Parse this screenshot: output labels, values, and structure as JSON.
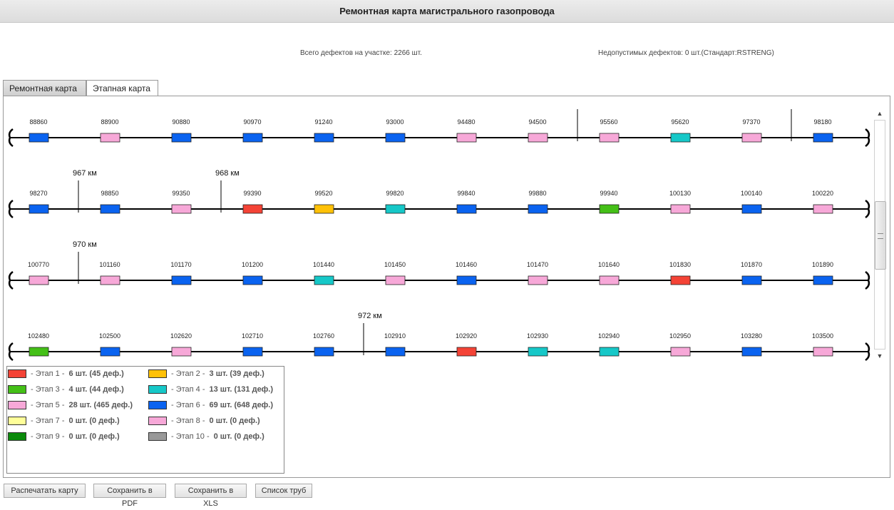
{
  "header": {
    "title": "Ремонтная карта магистрального газопровода"
  },
  "summary": {
    "total_defects": "Всего дефектов на участке: 2266 шт.",
    "critical_defects": "Недопустимых дефектов: 0 шт.(Стандарт:RSTRENG)"
  },
  "tabs": [
    {
      "label": "Ремонтная карта",
      "active": false
    },
    {
      "label": "Этапная карта",
      "active": true
    }
  ],
  "colors": {
    "stage1": "#f44336",
    "stage2": "#ffc107",
    "stage3": "#44c017",
    "stage4": "#16c8c8",
    "stage5": "#f7a8d8",
    "stage6": "#0a63f0",
    "stage7": "#ffff99",
    "stage8": "#f7a8d8",
    "stage9": "#0a8a0a",
    "stage10": "#999999"
  },
  "map": {
    "rows": [
      {
        "pipes": [
          {
            "label": "88860",
            "stage": 6
          },
          {
            "label": "88900",
            "stage": 5
          },
          {
            "label": "90880",
            "stage": 6
          },
          {
            "label": "90970",
            "stage": 6
          },
          {
            "label": "91240",
            "stage": 6
          },
          {
            "label": "93000",
            "stage": 6
          },
          {
            "label": "94480",
            "stage": 5
          },
          {
            "label": "94500",
            "stage": 5
          },
          {
            "label": "95560",
            "stage": 5
          },
          {
            "label": "95620",
            "stage": 4
          },
          {
            "label": "97370",
            "stage": 5
          },
          {
            "label": "98180",
            "stage": 6
          }
        ],
        "markers": [
          {
            "after": 7,
            "label": ""
          },
          {
            "after": 10,
            "label": ""
          }
        ]
      },
      {
        "pipes": [
          {
            "label": "98270",
            "stage": 6
          },
          {
            "label": "98850",
            "stage": 6
          },
          {
            "label": "99350",
            "stage": 5
          },
          {
            "label": "99390",
            "stage": 1
          },
          {
            "label": "99520",
            "stage": 2
          },
          {
            "label": "99820",
            "stage": 4
          },
          {
            "label": "99840",
            "stage": 6
          },
          {
            "label": "99880",
            "stage": 6
          },
          {
            "label": "99940",
            "stage": 3
          },
          {
            "label": "100130",
            "stage": 5
          },
          {
            "label": "100140",
            "stage": 6
          },
          {
            "label": "100220",
            "stage": 5
          }
        ],
        "markers": [
          {
            "after": 0,
            "label": "967 км"
          },
          {
            "after": 2,
            "label": "968 км"
          }
        ]
      },
      {
        "pipes": [
          {
            "label": "100770",
            "stage": 5
          },
          {
            "label": "101160",
            "stage": 5
          },
          {
            "label": "101170",
            "stage": 6
          },
          {
            "label": "101200",
            "stage": 6
          },
          {
            "label": "101440",
            "stage": 4
          },
          {
            "label": "101450",
            "stage": 5
          },
          {
            "label": "101460",
            "stage": 6
          },
          {
            "label": "101470",
            "stage": 5
          },
          {
            "label": "101640",
            "stage": 5
          },
          {
            "label": "101830",
            "stage": 1
          },
          {
            "label": "101870",
            "stage": 6
          },
          {
            "label": "101890",
            "stage": 6
          }
        ],
        "markers": [
          {
            "after": 0,
            "label": "970 км"
          }
        ]
      },
      {
        "pipes": [
          {
            "label": "102480",
            "stage": 3
          },
          {
            "label": "102500",
            "stage": 6
          },
          {
            "label": "102620",
            "stage": 5
          },
          {
            "label": "102710",
            "stage": 6
          },
          {
            "label": "102760",
            "stage": 6
          },
          {
            "label": "102910",
            "stage": 6
          },
          {
            "label": "102920",
            "stage": 1
          },
          {
            "label": "102930",
            "stage": 4
          },
          {
            "label": "102940",
            "stage": 4
          },
          {
            "label": "102950",
            "stage": 5
          },
          {
            "label": "103280",
            "stage": 6
          },
          {
            "label": "103500",
            "stage": 5
          }
        ],
        "markers": [
          {
            "after": 4,
            "label": "972 км"
          }
        ]
      }
    ]
  },
  "legend": {
    "items": [
      {
        "label": "- Этап 1 -",
        "count": "6 шт. (45 деф.)",
        "color": "#f44336"
      },
      {
        "label": "- Этап 2 -",
        "count": "3 шт. (39 деф.)",
        "color": "#ffc107"
      },
      {
        "label": "- Этап 3 -",
        "count": "4 шт. (44 деф.)",
        "color": "#44c017"
      },
      {
        "label": "- Этап 4 -",
        "count": "13 шт. (131 деф.)",
        "color": "#16c8c8"
      },
      {
        "label": "- Этап 5 -",
        "count": "28 шт. (465 деф.)",
        "color": "#f7a8d8"
      },
      {
        "label": "- Этап 6 -",
        "count": "69 шт. (648 деф.)",
        "color": "#0a63f0"
      },
      {
        "label": "- Этап 7 -",
        "count": "0 шт. (0 деф.)",
        "color": "#ffff99"
      },
      {
        "label": "- Этап 8 -",
        "count": "0 шт. (0 деф.)",
        "color": "#f7a8d8"
      },
      {
        "label": "- Этап 9 -",
        "count": "0 шт. (0 деф.)",
        "color": "#0a8a0a"
      },
      {
        "label": "- Этап 10 -",
        "count": "0 шт. (0 деф.)",
        "color": "#999999"
      }
    ]
  },
  "buttons": {
    "print": "Распечатать карту",
    "pdf": "Сохранить в PDF",
    "xls": "Сохранить в XLS",
    "pipes": "Список труб"
  },
  "icons": {
    "scroll_up": "triangle-up",
    "scroll_down": "triangle-down",
    "pipe_end": "brace"
  }
}
